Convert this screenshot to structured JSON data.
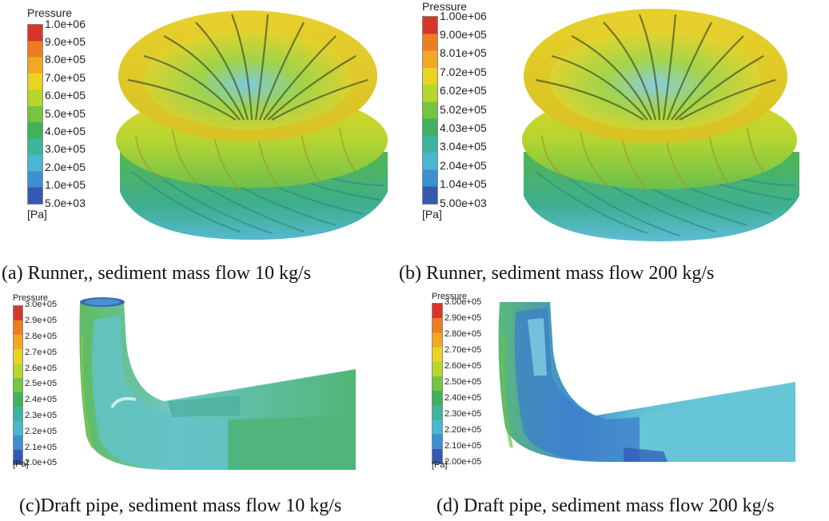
{
  "legend_colors": [
    "#d8352a",
    "#ee7d22",
    "#f3a824",
    "#e8d421",
    "#b6d62b",
    "#77c342",
    "#3fb25b",
    "#3cb59e",
    "#4ab6cf",
    "#3d8fd2",
    "#3559b2"
  ],
  "panels": [
    {
      "legend": {
        "title": "Pressure",
        "ticks": [
          "1.0e+06",
          "9.0e+05",
          "8.0e+05",
          "7.0e+05",
          "6.0e+05",
          "5.0e+05",
          "4.0e+05",
          "3.0e+05",
          "2.0e+05",
          "1.0e+05",
          "5.0e+03"
        ],
        "unit": "[Pa]"
      },
      "caption": "(a) Runner,, sediment mass flow 10 kg/s"
    },
    {
      "legend": {
        "title": "Pressure",
        "ticks": [
          "1.00e+06",
          "9.00e+05",
          "8.01e+05",
          "7.02e+05",
          "6.02e+05",
          "5.02e+05",
          "4.03e+05",
          "3.04e+05",
          "2.04e+05",
          "1.04e+05",
          "5.00e+03"
        ],
        "unit": "[Pa]"
      },
      "caption": "(b) Runner, sediment mass flow 200 kg/s"
    },
    {
      "legend": {
        "title": "Pressure",
        "ticks": [
          "3.0e+05",
          "2.9e+05",
          "2.8e+05",
          "2.7e+05",
          "2.6e+05",
          "2.5e+05",
          "2.4e+05",
          "2.3e+05",
          "2.2e+05",
          "2.1e+05",
          "2.0e+05"
        ],
        "unit": "[Pa]"
      },
      "caption": "(c)Draft pipe, sediment mass flow 10 kg/s"
    },
    {
      "legend": {
        "title": "Pressure",
        "ticks": [
          "3.00e+05",
          "2.90e+05",
          "2.80e+05",
          "2.70e+05",
          "2.60e+05",
          "2.50e+05",
          "2.40e+05",
          "2.30e+05",
          "2.20e+05",
          "2.10e+05",
          "2.00e+05"
        ],
        "unit": "[Pa]"
      },
      "caption": "(d) Draft pipe, sediment mass flow 200 kg/s"
    }
  ]
}
